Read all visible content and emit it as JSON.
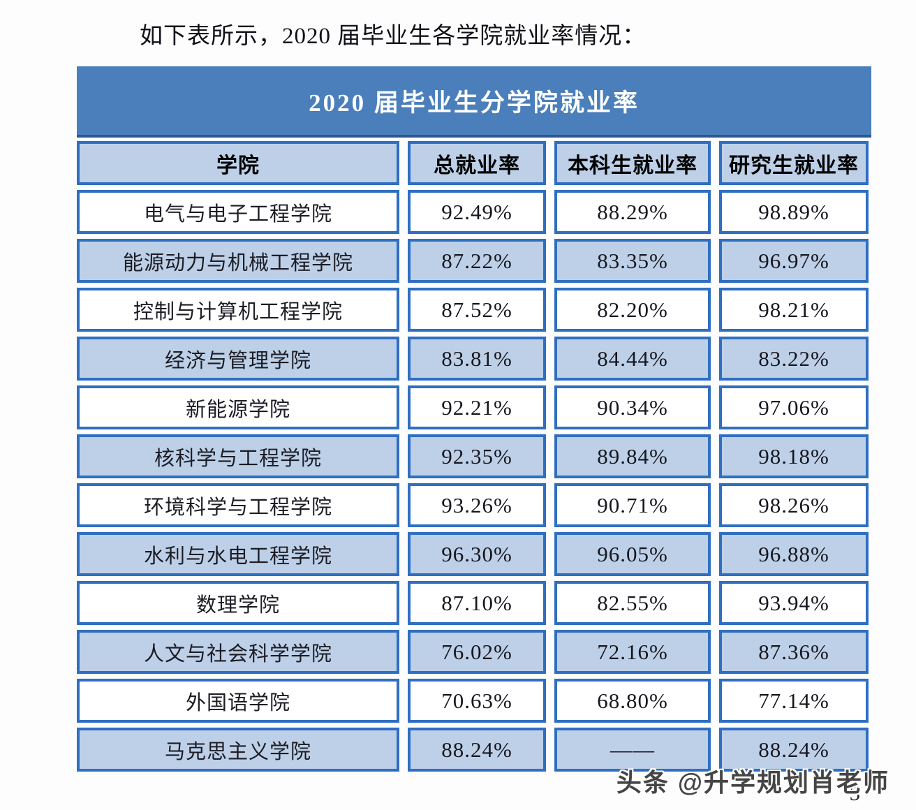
{
  "page": {
    "intro": "如下表所示，2020 届毕业生各学院就业率情况：",
    "watermark": "头条 @升学规划肖老师",
    "page_number": "5"
  },
  "table": {
    "title": "2020 届毕业生分学院就业率",
    "columns": [
      "学院",
      "总就业率",
      "本科生就业率",
      "研究生就业率"
    ],
    "rows": [
      [
        "电气与电子工程学院",
        "92.49%",
        "88.29%",
        "98.89%"
      ],
      [
        "能源动力与机械工程学院",
        "87.22%",
        "83.35%",
        "96.97%"
      ],
      [
        "控制与计算机工程学院",
        "87.52%",
        "82.20%",
        "98.21%"
      ],
      [
        "经济与管理学院",
        "83.81%",
        "84.44%",
        "83.22%"
      ],
      [
        "新能源学院",
        "92.21%",
        "90.34%",
        "97.06%"
      ],
      [
        "核科学与工程学院",
        "92.35%",
        "89.84%",
        "98.18%"
      ],
      [
        "环境科学与工程学院",
        "93.26%",
        "90.71%",
        "98.26%"
      ],
      [
        "水利与水电工程学院",
        "96.30%",
        "96.05%",
        "96.88%"
      ],
      [
        "数理学院",
        "87.10%",
        "82.55%",
        "93.94%"
      ],
      [
        "人文与社会科学学院",
        "76.02%",
        "72.16%",
        "87.36%"
      ],
      [
        "外国语学院",
        "70.63%",
        "68.80%",
        "77.14%"
      ],
      [
        "马克思主义学院",
        "88.24%",
        "——",
        "88.24%"
      ]
    ]
  },
  "colors": {
    "banner_bg": "#4b7fbb",
    "banner_edge": "#2c5792",
    "row_alt": "#bdd0e8",
    "cell_border": "#2f6fc1",
    "watermark_color": "#454545"
  }
}
